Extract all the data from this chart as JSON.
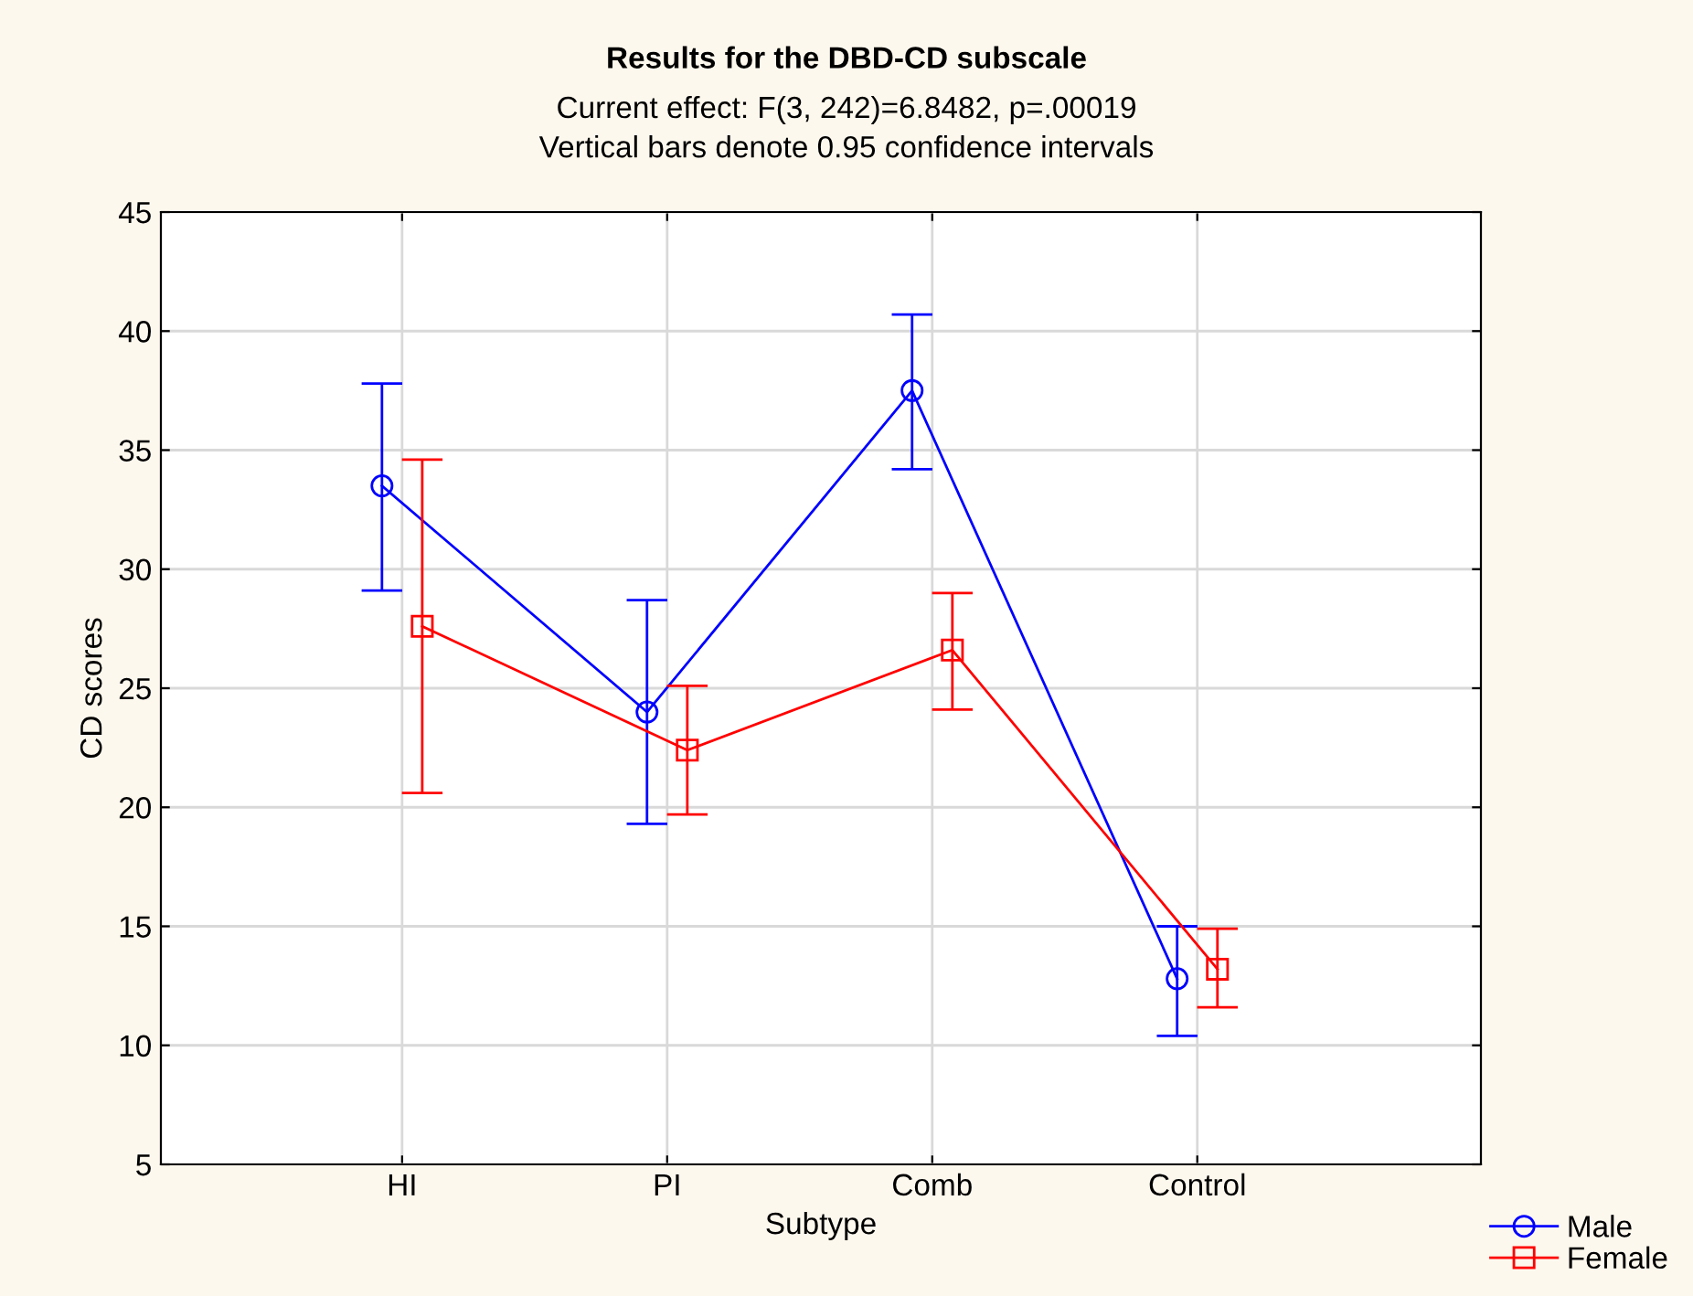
{
  "chart_data": {
    "type": "line",
    "title": "Results for the DBD-CD subscale",
    "subtitle": "Current effect: F(3, 242)=6.8482, p=.00019\nVertical bars denote 0.95 confidence intervals",
    "xlabel": "Subtype",
    "ylabel": "CD scores",
    "categories": [
      "HI",
      "PI",
      "Comb",
      "Control"
    ],
    "series": [
      {
        "name": "Male",
        "color": "#0000ff",
        "marker": "circle",
        "values": [
          33.5,
          24.0,
          37.5,
          12.8
        ],
        "errors": [
          [
            29.1,
            37.8
          ],
          [
            19.3,
            28.7
          ],
          [
            34.2,
            40.7
          ],
          [
            10.4,
            15.0
          ]
        ]
      },
      {
        "name": "Female",
        "color": "#ff0000",
        "marker": "square",
        "values": [
          27.6,
          22.4,
          26.6,
          13.2
        ],
        "errors": [
          [
            20.6,
            34.6
          ],
          [
            19.7,
            25.1
          ],
          [
            24.1,
            29.0
          ],
          [
            11.6,
            14.9
          ]
        ]
      }
    ],
    "ylim": [
      5,
      45
    ],
    "yticks": [
      5,
      10,
      15,
      20,
      25,
      30,
      35,
      40,
      45
    ],
    "grid": true,
    "legend": "bottom right",
    "line_style": "solid"
  }
}
